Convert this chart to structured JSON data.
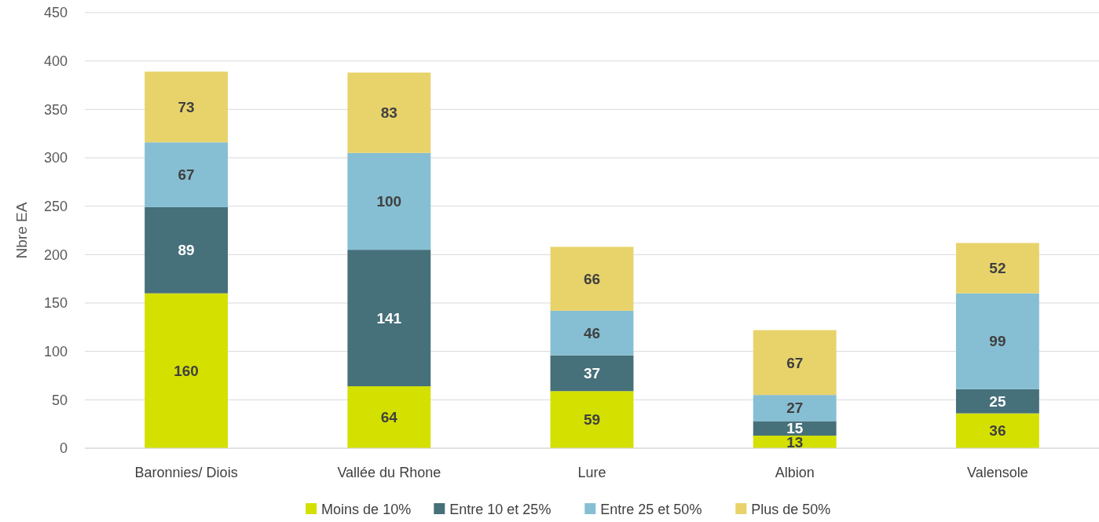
{
  "chart_data": {
    "type": "bar",
    "stacked": true,
    "ylabel": "Nbre EA",
    "categories": [
      "Baronnies/ Diois",
      "Vallée du Rhone",
      "Lure",
      "Albion",
      "Valensole"
    ],
    "series": [
      {
        "name": "Moins de 10%",
        "color": "#d4e000",
        "values": [
          160,
          64,
          59,
          13,
          36
        ]
      },
      {
        "name": "Entre 10 et 25%",
        "color": "#46707a",
        "values": [
          89,
          141,
          37,
          15,
          25
        ]
      },
      {
        "name": "Entre 25 et 50%",
        "color": "#86bfd3",
        "values": [
          67,
          100,
          46,
          27,
          99
        ]
      },
      {
        "name": "Plus de 50%",
        "color": "#e8d36b",
        "values": [
          73,
          83,
          66,
          67,
          52
        ]
      }
    ],
    "ylim": [
      0,
      450
    ],
    "yticks": [
      0,
      50,
      100,
      150,
      200,
      250,
      300,
      350,
      400,
      450
    ],
    "grid": "y",
    "legend": "bottom",
    "data_labels": true
  }
}
